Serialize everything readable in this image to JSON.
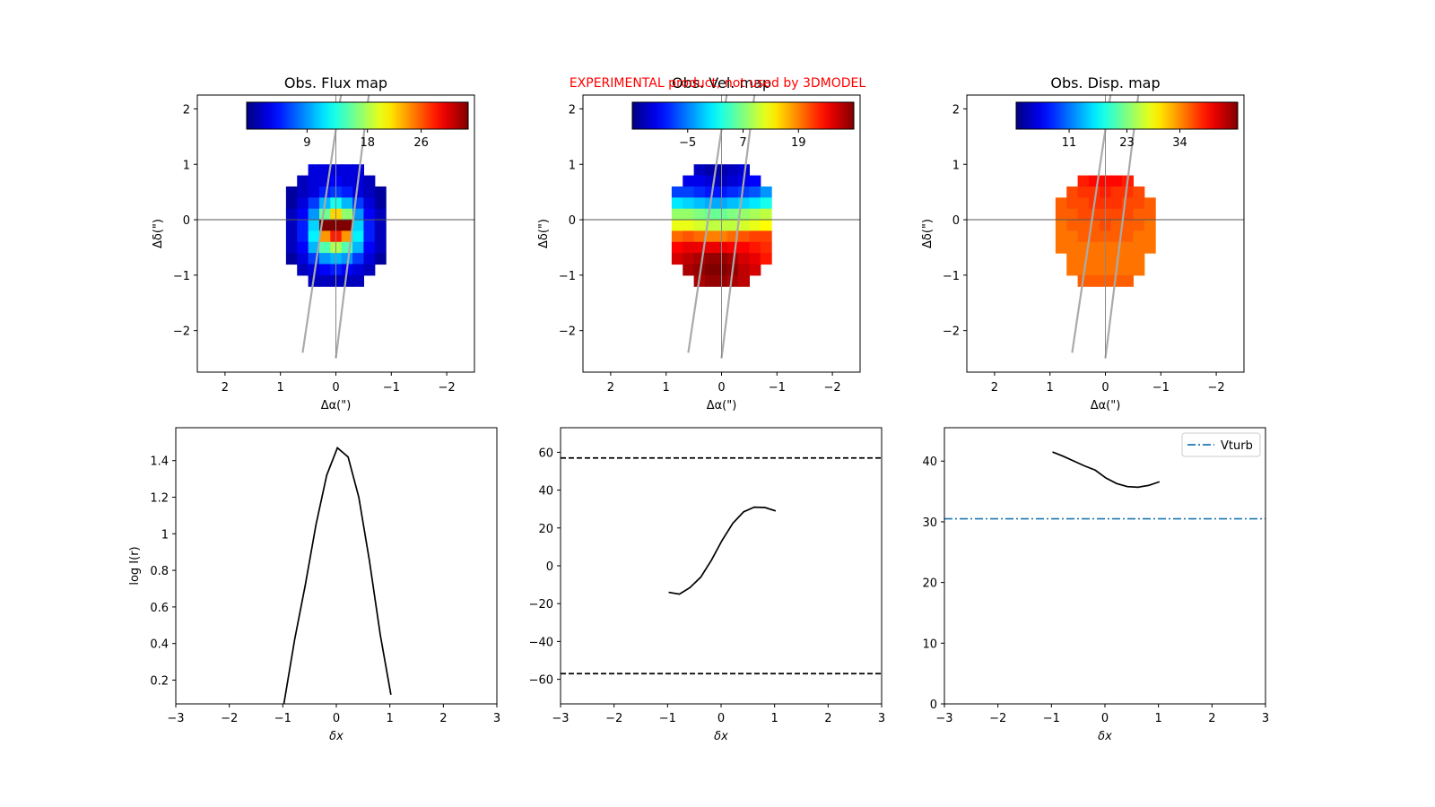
{
  "figure": {
    "banner": "EXPERIMENTAL product, not used by 3DMODEL",
    "banner_color": "#ff0000"
  },
  "colormap": "jet",
  "chart_data": [
    {
      "id": "flux_map",
      "type": "heatmap",
      "title": "Obs. Flux map",
      "xlabel": "Δα(\")",
      "ylabel": "Δδ(\")",
      "xlim": [
        2.5,
        -2.5
      ],
      "ylim": [
        -2.75,
        2.25
      ],
      "xticks": [
        "−2",
        "−1",
        "0",
        "1",
        "2"
      ],
      "yticks": [
        "2",
        "1",
        "0",
        "−1",
        "−2"
      ],
      "colorbar": {
        "ticks": [
          "9",
          "18",
          "26"
        ],
        "vmin": 0,
        "vmax": 33
      },
      "pixel_size": 0.2,
      "grid_center": [
        0,
        -0.1
      ],
      "values": [
        [
          null,
          null,
          null,
          3,
          3,
          3,
          3,
          3,
          null,
          null,
          null
        ],
        [
          null,
          null,
          2,
          3,
          3,
          4,
          3,
          3,
          2,
          null,
          null
        ],
        [
          null,
          1,
          2,
          3,
          5,
          6,
          5,
          3,
          2,
          1,
          null
        ],
        [
          null,
          1,
          3,
          6,
          10,
          13,
          10,
          6,
          3,
          1,
          null
        ],
        [
          null,
          2,
          4,
          9,
          16,
          22,
          17,
          9,
          4,
          2,
          null
        ],
        [
          null,
          2,
          5,
          11,
          33,
          33,
          33,
          11,
          5,
          2,
          null
        ],
        [
          null,
          2,
          5,
          12,
          24,
          28,
          24,
          12,
          5,
          2,
          null
        ],
        [
          null,
          2,
          4,
          10,
          15,
          18,
          15,
          10,
          4,
          2,
          null
        ],
        [
          null,
          1,
          3,
          6,
          9,
          10,
          9,
          6,
          3,
          1,
          null
        ],
        [
          null,
          null,
          2,
          3,
          4,
          5,
          4,
          3,
          2,
          null,
          null
        ],
        [
          null,
          null,
          null,
          2,
          2,
          2,
          2,
          2,
          null,
          null,
          null
        ]
      ],
      "overlay_lines": [
        {
          "x": [
            0.6,
            -0.1
          ],
          "y": [
            -2.4,
            2.3
          ]
        },
        {
          "x": [
            0.0,
            -0.6
          ],
          "y": [
            -2.5,
            2.3
          ]
        },
        {
          "x": [
            0,
            0
          ],
          "y": [
            -2.5,
            2.3
          ]
        }
      ],
      "hline": 0
    },
    {
      "id": "vel_map",
      "type": "heatmap",
      "title": "Obs. Vel. map",
      "xlabel": "Δα(\")",
      "ylabel": "Δδ(\")",
      "xlim": [
        2.5,
        -2.5
      ],
      "ylim": [
        -2.75,
        2.25
      ],
      "xticks": [
        "−2",
        "−1",
        "0",
        "1",
        "2"
      ],
      "yticks": [
        "2",
        "1",
        "0",
        "−1",
        "−2"
      ],
      "colorbar": {
        "ticks": [
          "−5",
          "7",
          "19"
        ],
        "vmin": -17,
        "vmax": 31
      },
      "pixel_size": 0.2,
      "grid_center": [
        0,
        -0.1
      ],
      "values": [
        [
          null,
          null,
          null,
          -14,
          -15,
          -15,
          -14,
          -13,
          null,
          null,
          null
        ],
        [
          null,
          null,
          -12,
          -12,
          -13,
          -14,
          -13,
          -12,
          -11,
          null,
          null
        ],
        [
          null,
          -8,
          -8,
          -9,
          -10,
          -10,
          -9,
          -8,
          -7,
          -4,
          null
        ],
        [
          null,
          0,
          -1,
          -2,
          -3,
          -3,
          -2,
          -1,
          0,
          2,
          null
        ],
        [
          null,
          8,
          8,
          7,
          6,
          6,
          7,
          8,
          9,
          10,
          null
        ],
        [
          null,
          12,
          12,
          11,
          10,
          10,
          10,
          11,
          12,
          13,
          null
        ],
        [
          null,
          20,
          21,
          20,
          19,
          19,
          20,
          21,
          22,
          22,
          null
        ],
        [
          null,
          25,
          26,
          26,
          26,
          26,
          25,
          25,
          24,
          23,
          null
        ],
        [
          null,
          27,
          28,
          29,
          30,
          30,
          29,
          27,
          26,
          24,
          null
        ],
        [
          null,
          null,
          29,
          30,
          31,
          31,
          30,
          28,
          27,
          null,
          null
        ],
        [
          null,
          null,
          null,
          29,
          30,
          30,
          29,
          28,
          null,
          null,
          null
        ]
      ],
      "overlay_lines": [
        {
          "x": [
            0.6,
            -0.1
          ],
          "y": [
            -2.4,
            2.3
          ]
        },
        {
          "x": [
            0.0,
            -0.6
          ],
          "y": [
            -2.5,
            2.3
          ]
        },
        {
          "x": [
            0,
            0
          ],
          "y": [
            -2.5,
            2.3
          ]
        }
      ],
      "hline": 0
    },
    {
      "id": "disp_map",
      "type": "heatmap",
      "title": "Obs. Disp. map",
      "xlabel": "Δα(\")",
      "ylabel": "Δδ(\")",
      "xlim": [
        2.5,
        -2.5
      ],
      "ylim": [
        -2.75,
        2.25
      ],
      "xticks": [
        "−2",
        "−1",
        "0",
        "1",
        "2"
      ],
      "yticks": [
        "2",
        "1",
        "0",
        "−1",
        "−2"
      ],
      "colorbar": {
        "ticks": [
          "11",
          "23",
          "34"
        ],
        "vmin": 0,
        "vmax": 46
      },
      "pixel_size": 0.2,
      "grid_center": [
        0,
        -0.1
      ],
      "values": [
        [
          null,
          null,
          null,
          null,
          null,
          null,
          null,
          null,
          null,
          null,
          null
        ],
        [
          null,
          null,
          null,
          39,
          40,
          40,
          40,
          39,
          null,
          null,
          null
        ],
        [
          null,
          null,
          37,
          38,
          38,
          39,
          38,
          38,
          37,
          null,
          null
        ],
        [
          null,
          36,
          37,
          37,
          38,
          38,
          38,
          37,
          37,
          36,
          null
        ],
        [
          null,
          36,
          36,
          37,
          37,
          37,
          37,
          37,
          36,
          36,
          null
        ],
        [
          null,
          35,
          36,
          36,
          36,
          37,
          36,
          36,
          36,
          35,
          null
        ],
        [
          null,
          35,
          35,
          36,
          36,
          36,
          36,
          36,
          35,
          35,
          null
        ],
        [
          null,
          35,
          35,
          35,
          35,
          35,
          35,
          35,
          35,
          35,
          null
        ],
        [
          null,
          null,
          35,
          35,
          35,
          35,
          35,
          35,
          35,
          null,
          null
        ],
        [
          null,
          null,
          35,
          35,
          35,
          35,
          35,
          35,
          35,
          null,
          null
        ],
        [
          null,
          null,
          null,
          36,
          36,
          36,
          36,
          36,
          null,
          null,
          null
        ]
      ],
      "overlay_lines": [
        {
          "x": [
            0.6,
            -0.1
          ],
          "y": [
            -2.4,
            2.3
          ]
        },
        {
          "x": [
            0.0,
            -0.6
          ],
          "y": [
            -2.5,
            2.3
          ]
        },
        {
          "x": [
            0,
            0
          ],
          "y": [
            -2.5,
            2.3
          ]
        }
      ],
      "hline": 0
    },
    {
      "id": "flux_profile",
      "type": "line",
      "title": "",
      "xlabel": "δx",
      "ylabel": "log I(r)",
      "xlim": [
        -3,
        3
      ],
      "ylim": [
        0.07,
        1.58
      ],
      "xticks": [
        -3,
        -2,
        -1,
        0,
        1,
        2,
        3
      ],
      "yticks": [
        0.2,
        0.4,
        0.6,
        0.8,
        1.0,
        1.2,
        1.4
      ],
      "series": [
        {
          "style": "solid",
          "color": "#000000",
          "x": [
            -0.98,
            -0.78,
            -0.58,
            -0.38,
            -0.18,
            0.02,
            0.22,
            0.42,
            0.62,
            0.82,
            1.02
          ],
          "y": [
            0.07,
            0.42,
            0.72,
            1.05,
            1.32,
            1.47,
            1.42,
            1.2,
            0.85,
            0.45,
            0.12
          ]
        }
      ]
    },
    {
      "id": "vel_profile",
      "type": "line",
      "title": "",
      "xlabel": "δx",
      "ylabel": "",
      "xlim": [
        -3,
        3
      ],
      "ylim": [
        -73,
        73
      ],
      "xticks": [
        -3,
        -2,
        -1,
        0,
        1,
        2,
        3
      ],
      "yticks": [
        -60,
        -40,
        -20,
        0,
        20,
        40,
        60
      ],
      "series": [
        {
          "style": "solid",
          "color": "#000000",
          "x": [
            -0.98,
            -0.78,
            -0.58,
            -0.38,
            -0.18,
            0.02,
            0.22,
            0.42,
            0.62,
            0.82,
            1.02
          ],
          "y": [
            -14,
            -15,
            -11.5,
            -6,
            3,
            13.5,
            22.5,
            28.5,
            31,
            30.8,
            29
          ]
        },
        {
          "style": "dashed",
          "color": "#000000",
          "x": [
            -3,
            3
          ],
          "y": [
            57,
            57
          ]
        },
        {
          "style": "dashed",
          "color": "#000000",
          "x": [
            -3,
            3
          ],
          "y": [
            -57,
            -57
          ]
        }
      ]
    },
    {
      "id": "disp_profile",
      "type": "line",
      "title": "",
      "xlabel": "δx",
      "ylabel": "",
      "xlim": [
        -3,
        3
      ],
      "ylim": [
        0,
        45.5
      ],
      "xticks": [
        -3,
        -2,
        -1,
        0,
        1,
        2,
        3
      ],
      "yticks": [
        0,
        10,
        20,
        30,
        40
      ],
      "legend": {
        "position": "upper right",
        "entries": [
          "Vturb"
        ]
      },
      "series": [
        {
          "style": "solid",
          "color": "#000000",
          "x": [
            -0.98,
            -0.78,
            -0.58,
            -0.38,
            -0.18,
            0.02,
            0.22,
            0.42,
            0.62,
            0.82,
            1.02
          ],
          "y": [
            41.5,
            40.8,
            40,
            39.2,
            38.5,
            37.2,
            36.3,
            35.8,
            35.7,
            36,
            36.6
          ]
        },
        {
          "name": "Vturb",
          "style": "dashdot",
          "color": "#1f77b4",
          "x": [
            -3,
            3
          ],
          "y": [
            30.5,
            30.5
          ]
        }
      ]
    }
  ]
}
